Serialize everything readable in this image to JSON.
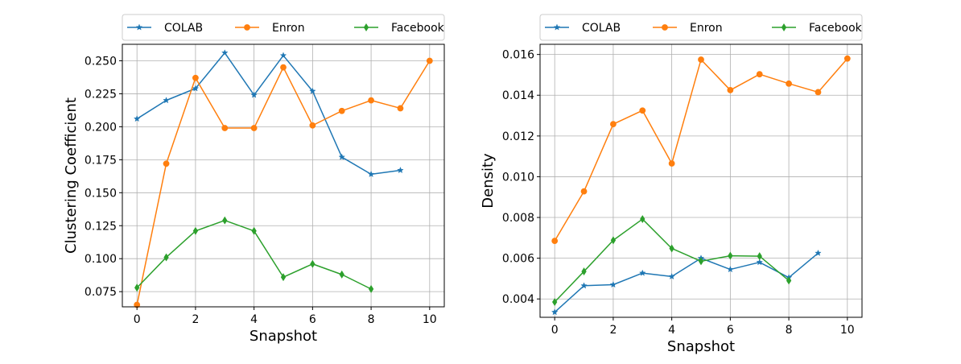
{
  "colors": {
    "COLAB": "#1f77b4",
    "Enron": "#ff7f0e",
    "Facebook": "#2ca02c"
  },
  "chart_data": [
    {
      "type": "line",
      "xlabel": "Snapshot",
      "ylabel": "Clustering Coefficient",
      "xlim": [
        -0.5,
        10.5
      ],
      "ylim": [
        0.0635,
        0.2625
      ],
      "xticks": [
        0,
        2,
        4,
        6,
        8,
        10
      ],
      "yticks": [
        0.075,
        0.1,
        0.125,
        0.15,
        0.175,
        0.2,
        0.225,
        0.25
      ],
      "ytick_labels": [
        "0.075",
        "0.100",
        "0.125",
        "0.150",
        "0.175",
        "0.200",
        "0.225",
        "0.250"
      ],
      "grid": true,
      "legend_position": "top (above plot)",
      "series": [
        {
          "name": "COLAB",
          "marker": "star",
          "x": [
            0,
            1,
            2,
            3,
            4,
            5,
            6,
            7,
            8,
            9
          ],
          "values": [
            0.206,
            0.22,
            0.229,
            0.256,
            0.224,
            0.254,
            0.227,
            0.177,
            0.164,
            0.167
          ]
        },
        {
          "name": "Enron",
          "marker": "circle",
          "x": [
            0,
            1,
            2,
            3,
            4,
            5,
            6,
            7,
            8,
            9,
            10
          ],
          "values": [
            0.065,
            0.172,
            0.237,
            0.199,
            0.199,
            0.245,
            0.201,
            0.212,
            0.22,
            0.214,
            0.25
          ]
        },
        {
          "name": "Facebook",
          "marker": "diamond",
          "x": [
            0,
            1,
            2,
            3,
            4,
            5,
            6,
            7,
            8
          ],
          "values": [
            0.078,
            0.101,
            0.121,
            0.129,
            0.121,
            0.086,
            0.096,
            0.088,
            0.077
          ]
        }
      ]
    },
    {
      "type": "line",
      "xlabel": "Snapshot",
      "ylabel": "Density",
      "xlim": [
        -0.5,
        10.5
      ],
      "ylim": [
        0.0031,
        0.0165
      ],
      "xticks": [
        0,
        2,
        4,
        6,
        8,
        10
      ],
      "yticks": [
        0.004,
        0.006,
        0.008,
        0.01,
        0.012,
        0.014,
        0.016
      ],
      "ytick_labels": [
        "0.004",
        "0.006",
        "0.008",
        "0.010",
        "0.012",
        "0.014",
        "0.016"
      ],
      "grid": true,
      "legend_position": "top (above plot)",
      "series": [
        {
          "name": "COLAB",
          "marker": "star",
          "x": [
            0,
            1,
            2,
            3,
            4,
            5,
            6,
            7,
            8,
            9
          ],
          "values": [
            0.00335,
            0.00465,
            0.0047,
            0.00527,
            0.0051,
            0.006,
            0.00545,
            0.0058,
            0.00505,
            0.00625
          ]
        },
        {
          "name": "Enron",
          "marker": "circle",
          "x": [
            0,
            1,
            2,
            3,
            4,
            5,
            6,
            7,
            8,
            9,
            10
          ],
          "values": [
            0.00685,
            0.00928,
            0.01258,
            0.01325,
            0.01065,
            0.01575,
            0.01425,
            0.01503,
            0.01457,
            0.01415,
            0.0158
          ]
        },
        {
          "name": "Facebook",
          "marker": "diamond",
          "x": [
            0,
            1,
            2,
            3,
            4,
            5,
            6,
            7,
            8
          ],
          "values": [
            0.00385,
            0.00535,
            0.00688,
            0.00792,
            0.00648,
            0.00585,
            0.00612,
            0.0061,
            0.0049
          ]
        }
      ]
    }
  ]
}
